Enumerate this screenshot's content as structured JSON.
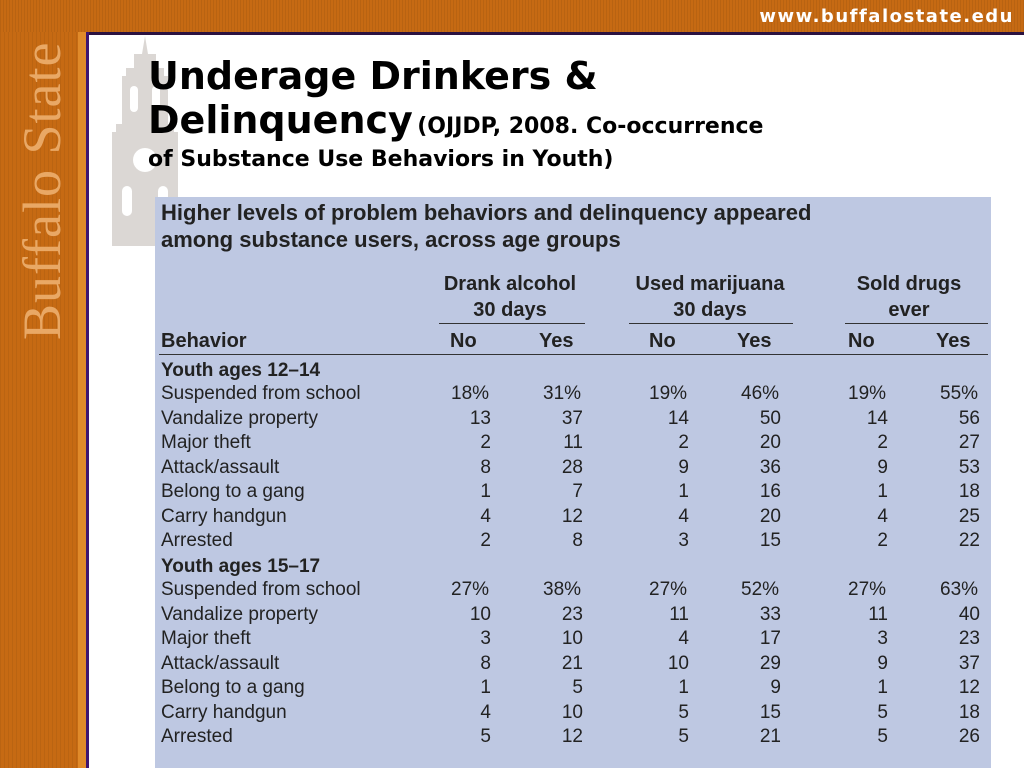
{
  "header": {
    "url": "www.buffalostate.edu",
    "logo_text": "Buffalo State"
  },
  "title": {
    "main_line1": "Underage Drinkers &",
    "main_line2": "Delinquency",
    "citation_part1": "(OJJDP, 2008. Co-occurrence",
    "citation_part2": "of Substance Use Behaviors in Youth)"
  },
  "table": {
    "heading_line1": "Higher levels of problem behaviors and delinquency appeared",
    "heading_line2": "among substance users, across age groups",
    "groups": [
      {
        "line1": "Drank alcohol",
        "line2": "30 days"
      },
      {
        "line1": "Used marijuana",
        "line2": "30 days"
      },
      {
        "line1": "Sold drugs",
        "line2": "ever"
      }
    ],
    "behavior_header": "Behavior",
    "no_label": "No",
    "yes_label": "Yes",
    "sections": [
      {
        "label": "Youth ages 12–14",
        "rows": [
          {
            "behavior": "Suspended from school",
            "values": [
              "18%",
              "31%",
              "19%",
              "46%",
              "19%",
              "55%"
            ]
          },
          {
            "behavior": "Vandalize property",
            "values": [
              "13",
              "37",
              "14",
              "50",
              "14",
              "56"
            ]
          },
          {
            "behavior": "Major theft",
            "values": [
              "2",
              "11",
              "2",
              "20",
              "2",
              "27"
            ]
          },
          {
            "behavior": "Attack/assault",
            "values": [
              "8",
              "28",
              "9",
              "36",
              "9",
              "53"
            ]
          },
          {
            "behavior": "Belong to a gang",
            "values": [
              "1",
              "7",
              "1",
              "16",
              "1",
              "18"
            ]
          },
          {
            "behavior": "Carry handgun",
            "values": [
              "4",
              "12",
              "4",
              "20",
              "4",
              "25"
            ]
          },
          {
            "behavior": "Arrested",
            "values": [
              "2",
              "8",
              "3",
              "15",
              "2",
              "22"
            ]
          }
        ]
      },
      {
        "label": "Youth ages 15–17",
        "rows": [
          {
            "behavior": "Suspended from school",
            "values": [
              "27%",
              "38%",
              "27%",
              "52%",
              "27%",
              "63%"
            ]
          },
          {
            "behavior": "Vandalize property",
            "values": [
              "10",
              "23",
              "11",
              "33",
              "11",
              "40"
            ]
          },
          {
            "behavior": "Major theft",
            "values": [
              "3",
              "10",
              "4",
              "17",
              "3",
              "23"
            ]
          },
          {
            "behavior": "Attack/assault",
            "values": [
              "8",
              "21",
              "10",
              "29",
              "9",
              "37"
            ]
          },
          {
            "behavior": "Belong to a gang",
            "values": [
              "1",
              "5",
              "1",
              "9",
              "1",
              "12"
            ]
          },
          {
            "behavior": "Carry handgun",
            "values": [
              "4",
              "10",
              "5",
              "15",
              "5",
              "18"
            ]
          },
          {
            "behavior": "Arrested",
            "values": [
              "5",
              "12",
              "5",
              "21",
              "5",
              "26"
            ]
          }
        ]
      }
    ]
  },
  "colors": {
    "orange": "#c66a13",
    "purple": "#3d1670",
    "panel": "#bec8e2"
  }
}
